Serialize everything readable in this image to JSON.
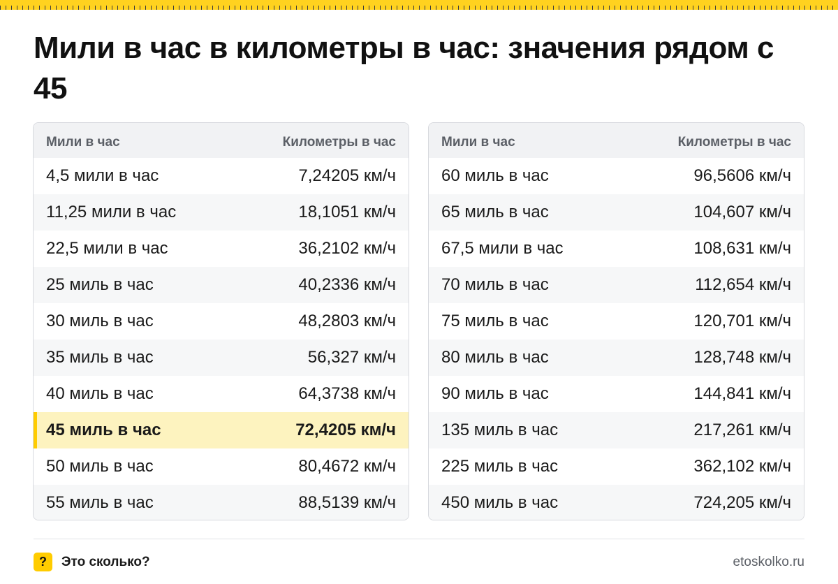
{
  "title": "Мили в час в километры в час: значения рядом с 45",
  "colors": {
    "accent": "#ffcc00",
    "highlight_bg": "#fdf3bf",
    "header_bg": "#f1f2f4"
  },
  "tables": [
    {
      "headers": {
        "left": "Мили в час",
        "right": "Километры в час"
      },
      "rows": [
        {
          "mph": "4,5 мили в час",
          "kmh": "7,24205 км/ч"
        },
        {
          "mph": "11,25 мили в час",
          "kmh": "18,1051 км/ч"
        },
        {
          "mph": "22,5 мили в час",
          "kmh": "36,2102 км/ч"
        },
        {
          "mph": "25 миль в час",
          "kmh": "40,2336 км/ч"
        },
        {
          "mph": "30 миль в час",
          "kmh": "48,2803 км/ч"
        },
        {
          "mph": "35 миль в час",
          "kmh": "56,327 км/ч"
        },
        {
          "mph": "40 миль в час",
          "kmh": "64,3738 км/ч"
        },
        {
          "mph": "45 миль в час",
          "kmh": "72,4205 км/ч",
          "highlighted": true
        },
        {
          "mph": "50 миль в час",
          "kmh": "80,4672 км/ч"
        },
        {
          "mph": "55 миль в час",
          "kmh": "88,5139 км/ч"
        }
      ]
    },
    {
      "headers": {
        "left": "Мили в час",
        "right": "Километры в час"
      },
      "rows": [
        {
          "mph": "60 миль в час",
          "kmh": "96,5606 км/ч"
        },
        {
          "mph": "65 миль в час",
          "kmh": "104,607 км/ч"
        },
        {
          "mph": "67,5 мили в час",
          "kmh": "108,631 км/ч"
        },
        {
          "mph": "70 миль в час",
          "kmh": "112,654 км/ч"
        },
        {
          "mph": "75 миль в час",
          "kmh": "120,701 км/ч"
        },
        {
          "mph": "80 миль в час",
          "kmh": "128,748 км/ч"
        },
        {
          "mph": "90 миль в час",
          "kmh": "144,841 км/ч"
        },
        {
          "mph": "135 миль в час",
          "kmh": "217,261 км/ч"
        },
        {
          "mph": "225 миль в час",
          "kmh": "362,102 км/ч"
        },
        {
          "mph": "450 миль в час",
          "kmh": "724,205 км/ч"
        }
      ]
    }
  ],
  "footer": {
    "logo_glyph": "?",
    "brand": "Это сколько?",
    "site": "etoskolko.ru"
  }
}
